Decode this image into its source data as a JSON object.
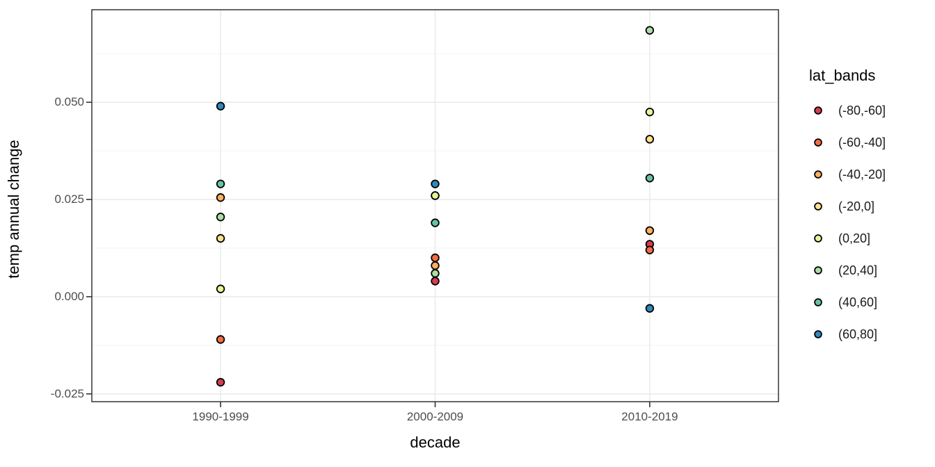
{
  "chart_data": {
    "type": "scatter",
    "title": "",
    "xlabel": "decade",
    "ylabel": "temp annual change",
    "categories": [
      "1990-1999",
      "2000-2009",
      "2010-2019"
    ],
    "series": [
      {
        "name": "(-80,-60]",
        "color": "#d53e4f",
        "values": [
          -0.022,
          0.004,
          0.0135
        ]
      },
      {
        "name": "(-60,-40]",
        "color": "#f46d43",
        "values": [
          -0.011,
          0.01,
          0.012
        ]
      },
      {
        "name": "(-40,-20]",
        "color": "#fdae61",
        "values": [
          0.0255,
          0.008,
          0.017
        ]
      },
      {
        "name": "(-20,0]",
        "color": "#fee08b",
        "values": [
          0.015,
          0.026,
          0.0405
        ]
      },
      {
        "name": "(0,20]",
        "color": "#e6f598",
        "values": [
          0.002,
          0.026,
          0.0475
        ]
      },
      {
        "name": "(20,40]",
        "color": "#abdda4",
        "values": [
          0.0205,
          0.006,
          0.0685
        ]
      },
      {
        "name": "(40,60]",
        "color": "#66c2a5",
        "values": [
          0.029,
          0.019,
          0.0305
        ]
      },
      {
        "name": "(60,80]",
        "color": "#3288bd",
        "values": [
          0.049,
          0.029,
          -0.003
        ]
      }
    ],
    "y_ticks": {
      "labels": [
        "0.050",
        "0.025",
        "0.000",
        "-0.025"
      ],
      "values": [
        0.05,
        0.025,
        0.0,
        -0.025
      ]
    },
    "y_minor_ticks": [
      0.0625,
      0.0375,
      0.0125,
      -0.0125
    ],
    "ylim": [
      -0.027,
      0.0738
    ],
    "grid": true,
    "legend": {
      "title": "lat_bands",
      "position": "right"
    },
    "style": {
      "background": "#ffffff",
      "panel_fill": "#ffffff",
      "panel_border": "#333333",
      "grid_major": "#ebebeb",
      "grid_minor": "#f3f3f3",
      "tick_color": "#333333",
      "tick_label_color": "#4d4d4d",
      "title_color": "#000000",
      "point_stroke": "#000000"
    }
  }
}
